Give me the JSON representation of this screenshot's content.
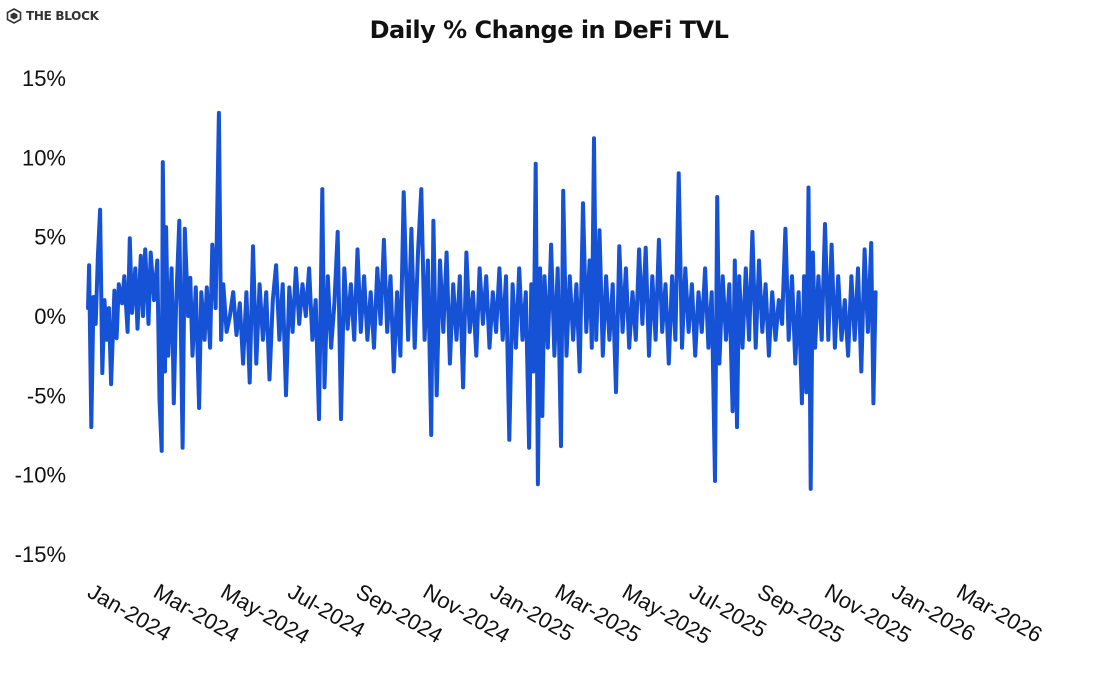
{
  "brand": {
    "name": "THE BLOCK",
    "icon": "the-block-logo-icon"
  },
  "chart_data": {
    "type": "line",
    "title": "Daily % Change in DeFi TVL",
    "xlabel": "",
    "ylabel": "",
    "ylim": [
      -15,
      15
    ],
    "yticks": [
      15,
      10,
      5,
      0,
      -5,
      -10,
      -15
    ],
    "ytick_labels": [
      "15%",
      "10%",
      "5%",
      "0%",
      "-5%",
      "-10%",
      "-15%"
    ],
    "x_range": [
      "2024-01-01",
      "2026-03-31"
    ],
    "xtick_labels": [
      "Jan-2024",
      "Mar-2024",
      "May-2024",
      "Jul-2024",
      "Sep-2024",
      "Nov-2024",
      "Jan-2025",
      "Mar-2025",
      "May-2025",
      "Jul-2025",
      "Sep-2025",
      "Nov-2025",
      "Jan-2026",
      "Mar-2026"
    ],
    "grid": false,
    "legend": "none",
    "series": [
      {
        "color": "#1652d6",
        "points": [
          [
            "2024-01-01",
            0.5
          ],
          [
            "2024-01-02",
            3.2
          ],
          [
            "2024-01-04",
            -7.0
          ],
          [
            "2024-01-06",
            1.2
          ],
          [
            "2024-01-08",
            -0.5
          ],
          [
            "2024-01-10",
            3.8
          ],
          [
            "2024-01-12",
            6.7
          ],
          [
            "2024-01-14",
            -3.6
          ],
          [
            "2024-01-16",
            1.0
          ],
          [
            "2024-01-18",
            -1.5
          ],
          [
            "2024-01-20",
            0.5
          ],
          [
            "2024-01-22",
            -4.3
          ],
          [
            "2024-01-25",
            1.6
          ],
          [
            "2024-01-27",
            -1.4
          ],
          [
            "2024-01-29",
            2.0
          ],
          [
            "2024-02-01",
            0.8
          ],
          [
            "2024-02-03",
            2.5
          ],
          [
            "2024-02-06",
            -1.0
          ],
          [
            "2024-02-08",
            4.9
          ],
          [
            "2024-02-10",
            0.2
          ],
          [
            "2024-02-13",
            3.0
          ],
          [
            "2024-02-15",
            -0.8
          ],
          [
            "2024-02-18",
            3.8
          ],
          [
            "2024-02-20",
            0.0
          ],
          [
            "2024-02-22",
            4.2
          ],
          [
            "2024-02-25",
            -0.5
          ],
          [
            "2024-02-27",
            4.0
          ],
          [
            "2024-03-01",
            1.0
          ],
          [
            "2024-03-04",
            3.5
          ],
          [
            "2024-03-06",
            -5.3
          ],
          [
            "2024-03-08",
            -8.5
          ],
          [
            "2024-03-09",
            9.7
          ],
          [
            "2024-03-11",
            -3.5
          ],
          [
            "2024-03-12",
            5.6
          ],
          [
            "2024-03-14",
            -2.5
          ],
          [
            "2024-03-17",
            3.0
          ],
          [
            "2024-03-19",
            -5.5
          ],
          [
            "2024-03-21",
            0.5
          ],
          [
            "2024-03-24",
            6.0
          ],
          [
            "2024-03-27",
            -8.3
          ],
          [
            "2024-03-29",
            5.5
          ],
          [
            "2024-04-01",
            0.0
          ],
          [
            "2024-04-03",
            2.4
          ],
          [
            "2024-04-05",
            -2.5
          ],
          [
            "2024-04-08",
            1.8
          ],
          [
            "2024-04-11",
            -5.8
          ],
          [
            "2024-04-13",
            1.5
          ],
          [
            "2024-04-16",
            -1.5
          ],
          [
            "2024-04-18",
            1.8
          ],
          [
            "2024-04-21",
            -2.0
          ],
          [
            "2024-04-23",
            4.5
          ],
          [
            "2024-04-26",
            0.5
          ],
          [
            "2024-04-29",
            12.8
          ],
          [
            "2024-05-01",
            -1.5
          ],
          [
            "2024-05-03",
            2.0
          ],
          [
            "2024-05-06",
            -1.0
          ],
          [
            "2024-05-09",
            0.0
          ],
          [
            "2024-05-12",
            1.5
          ],
          [
            "2024-05-15",
            -1.2
          ],
          [
            "2024-05-18",
            0.8
          ],
          [
            "2024-05-21",
            -3.0
          ],
          [
            "2024-05-24",
            1.5
          ],
          [
            "2024-05-27",
            -4.2
          ],
          [
            "2024-05-30",
            4.4
          ],
          [
            "2024-06-02",
            -3.0
          ],
          [
            "2024-06-05",
            2.0
          ],
          [
            "2024-06-08",
            -1.5
          ],
          [
            "2024-06-11",
            1.5
          ],
          [
            "2024-06-14",
            -4.0
          ],
          [
            "2024-06-17",
            1.0
          ],
          [
            "2024-06-20",
            3.2
          ],
          [
            "2024-06-23",
            -1.5
          ],
          [
            "2024-06-26",
            2.0
          ],
          [
            "2024-06-29",
            -5.0
          ],
          [
            "2024-07-02",
            1.8
          ],
          [
            "2024-07-05",
            -1.0
          ],
          [
            "2024-07-08",
            3.0
          ],
          [
            "2024-07-11",
            -0.5
          ],
          [
            "2024-07-14",
            2.0
          ],
          [
            "2024-07-17",
            0.0
          ],
          [
            "2024-07-20",
            3.0
          ],
          [
            "2024-07-23",
            -1.5
          ],
          [
            "2024-07-26",
            1.0
          ],
          [
            "2024-07-29",
            -6.5
          ],
          [
            "2024-08-01",
            8.0
          ],
          [
            "2024-08-03",
            -4.5
          ],
          [
            "2024-08-06",
            2.5
          ],
          [
            "2024-08-09",
            -2.0
          ],
          [
            "2024-08-12",
            0.8
          ],
          [
            "2024-08-15",
            5.3
          ],
          [
            "2024-08-18",
            -6.5
          ],
          [
            "2024-08-21",
            3.0
          ],
          [
            "2024-08-24",
            -0.8
          ],
          [
            "2024-08-27",
            2.0
          ],
          [
            "2024-08-30",
            -1.5
          ],
          [
            "2024-09-02",
            4.2
          ],
          [
            "2024-09-05",
            -1.0
          ],
          [
            "2024-09-08",
            2.5
          ],
          [
            "2024-09-11",
            -1.5
          ],
          [
            "2024-09-14",
            1.5
          ],
          [
            "2024-09-17",
            -2.0
          ],
          [
            "2024-09-20",
            3.0
          ],
          [
            "2024-09-23",
            -0.5
          ],
          [
            "2024-09-26",
            4.8
          ],
          [
            "2024-09-29",
            -1.0
          ],
          [
            "2024-10-02",
            2.5
          ],
          [
            "2024-10-05",
            -3.5
          ],
          [
            "2024-10-08",
            1.5
          ],
          [
            "2024-10-11",
            -2.5
          ],
          [
            "2024-10-14",
            7.8
          ],
          [
            "2024-10-16",
            3.0
          ],
          [
            "2024-10-18",
            -1.5
          ],
          [
            "2024-10-21",
            5.5
          ],
          [
            "2024-10-24",
            -2.0
          ],
          [
            "2024-10-27",
            4.0
          ],
          [
            "2024-10-30",
            8.0
          ],
          [
            "2024-11-02",
            -1.5
          ],
          [
            "2024-11-05",
            3.5
          ],
          [
            "2024-11-08",
            -7.5
          ],
          [
            "2024-11-10",
            6.0
          ],
          [
            "2024-11-13",
            -5.0
          ],
          [
            "2024-11-16",
            3.5
          ],
          [
            "2024-11-19",
            -1.0
          ],
          [
            "2024-11-22",
            4.0
          ],
          [
            "2024-11-25",
            -3.0
          ],
          [
            "2024-11-28",
            2.0
          ],
          [
            "2024-12-01",
            -1.5
          ],
          [
            "2024-12-04",
            2.5
          ],
          [
            "2024-12-07",
            -4.5
          ],
          [
            "2024-12-10",
            4.0
          ],
          [
            "2024-12-13",
            -1.0
          ],
          [
            "2024-12-16",
            1.5
          ],
          [
            "2024-12-19",
            -2.5
          ],
          [
            "2024-12-22",
            3.0
          ],
          [
            "2024-12-25",
            -0.5
          ],
          [
            "2024-12-28",
            2.5
          ],
          [
            "2024-12-31",
            -2.0
          ],
          [
            "2025-01-03",
            1.5
          ],
          [
            "2025-01-06",
            -1.0
          ],
          [
            "2025-01-09",
            3.0
          ],
          [
            "2025-01-12",
            -1.5
          ],
          [
            "2025-01-15",
            2.5
          ],
          [
            "2025-01-18",
            -7.8
          ],
          [
            "2025-01-21",
            2.0
          ],
          [
            "2025-01-24",
            -2.0
          ],
          [
            "2025-01-27",
            3.0
          ],
          [
            "2025-01-30",
            -1.5
          ],
          [
            "2025-02-02",
            1.5
          ],
          [
            "2025-02-05",
            -8.3
          ],
          [
            "2025-02-07",
            2.0
          ],
          [
            "2025-02-09",
            -3.5
          ],
          [
            "2025-02-11",
            9.6
          ],
          [
            "2025-02-13",
            -10.6
          ],
          [
            "2025-02-15",
            3.0
          ],
          [
            "2025-02-17",
            -6.3
          ],
          [
            "2025-02-19",
            2.5
          ],
          [
            "2025-02-22",
            -2.0
          ],
          [
            "2025-02-25",
            4.5
          ],
          [
            "2025-02-28",
            -2.5
          ],
          [
            "2025-03-03",
            3.0
          ],
          [
            "2025-03-06",
            -8.2
          ],
          [
            "2025-03-08",
            7.9
          ],
          [
            "2025-03-11",
            -2.5
          ],
          [
            "2025-03-14",
            2.5
          ],
          [
            "2025-03-17",
            -1.5
          ],
          [
            "2025-03-20",
            2.0
          ],
          [
            "2025-03-23",
            -3.5
          ],
          [
            "2025-03-26",
            7.1
          ],
          [
            "2025-03-29",
            -1.0
          ],
          [
            "2025-04-01",
            3.5
          ],
          [
            "2025-04-03",
            -2.0
          ],
          [
            "2025-04-05",
            11.2
          ],
          [
            "2025-04-07",
            -1.5
          ],
          [
            "2025-04-10",
            5.4
          ],
          [
            "2025-04-13",
            -2.5
          ],
          [
            "2025-04-16",
            2.5
          ],
          [
            "2025-04-19",
            -1.5
          ],
          [
            "2025-04-22",
            2.0
          ],
          [
            "2025-04-25",
            -4.8
          ],
          [
            "2025-04-28",
            4.4
          ],
          [
            "2025-05-01",
            -1.0
          ],
          [
            "2025-05-04",
            3.0
          ],
          [
            "2025-05-07",
            -2.0
          ],
          [
            "2025-05-10",
            1.5
          ],
          [
            "2025-05-13",
            -1.5
          ],
          [
            "2025-05-16",
            4.2
          ],
          [
            "2025-05-19",
            -0.5
          ],
          [
            "2025-05-22",
            4.3
          ],
          [
            "2025-05-25",
            -2.5
          ],
          [
            "2025-05-28",
            2.5
          ],
          [
            "2025-05-31",
            -1.5
          ],
          [
            "2025-06-03",
            4.8
          ],
          [
            "2025-06-06",
            -1.0
          ],
          [
            "2025-06-09",
            2.0
          ],
          [
            "2025-06-12",
            -3.0
          ],
          [
            "2025-06-15",
            2.5
          ],
          [
            "2025-06-18",
            -1.5
          ],
          [
            "2025-06-21",
            9.0
          ],
          [
            "2025-06-24",
            -2.0
          ],
          [
            "2025-06-27",
            3.0
          ],
          [
            "2025-06-30",
            -1.0
          ],
          [
            "2025-07-03",
            2.0
          ],
          [
            "2025-07-06",
            -2.5
          ],
          [
            "2025-07-09",
            1.5
          ],
          [
            "2025-07-12",
            -1.0
          ],
          [
            "2025-07-15",
            3.0
          ],
          [
            "2025-07-18",
            -2.0
          ],
          [
            "2025-07-21",
            1.5
          ],
          [
            "2025-07-24",
            -10.4
          ],
          [
            "2025-07-26",
            7.5
          ],
          [
            "2025-07-28",
            -3.0
          ],
          [
            "2025-07-31",
            2.5
          ],
          [
            "2025-08-03",
            -1.5
          ],
          [
            "2025-08-06",
            2.0
          ],
          [
            "2025-08-09",
            -6.0
          ],
          [
            "2025-08-11",
            3.5
          ],
          [
            "2025-08-13",
            -7.0
          ],
          [
            "2025-08-15",
            2.5
          ],
          [
            "2025-08-18",
            -2.0
          ],
          [
            "2025-08-21",
            3.0
          ],
          [
            "2025-08-24",
            -1.5
          ],
          [
            "2025-08-27",
            5.3
          ],
          [
            "2025-08-30",
            -2.0
          ],
          [
            "2025-09-02",
            3.5
          ],
          [
            "2025-09-05",
            -1.0
          ],
          [
            "2025-09-08",
            2.0
          ],
          [
            "2025-09-11",
            -2.5
          ],
          [
            "2025-09-14",
            1.5
          ],
          [
            "2025-09-17",
            -1.5
          ],
          [
            "2025-09-20",
            1.0
          ],
          [
            "2025-09-23",
            -0.5
          ],
          [
            "2025-09-26",
            5.5
          ],
          [
            "2025-09-29",
            -1.5
          ],
          [
            "2025-10-02",
            2.5
          ],
          [
            "2025-10-05",
            -3.0
          ],
          [
            "2025-10-08",
            1.5
          ],
          [
            "2025-10-11",
            -5.5
          ],
          [
            "2025-10-13",
            2.5
          ],
          [
            "2025-10-15",
            -4.8
          ],
          [
            "2025-10-17",
            8.1
          ],
          [
            "2025-10-19",
            -10.9
          ],
          [
            "2025-10-21",
            4.0
          ],
          [
            "2025-10-23",
            -2.0
          ],
          [
            "2025-10-26",
            2.5
          ],
          [
            "2025-10-29",
            -1.5
          ],
          [
            "2025-11-01",
            5.8
          ],
          [
            "2025-11-04",
            -1.5
          ],
          [
            "2025-11-07",
            4.5
          ],
          [
            "2025-11-10",
            -2.0
          ],
          [
            "2025-11-13",
            2.5
          ],
          [
            "2025-11-16",
            -1.5
          ],
          [
            "2025-11-19",
            1.0
          ],
          [
            "2025-11-22",
            -2.5
          ],
          [
            "2025-11-25",
            2.5
          ],
          [
            "2025-11-28",
            -1.5
          ],
          [
            "2025-12-01",
            3.0
          ],
          [
            "2025-12-04",
            -3.5
          ],
          [
            "2025-12-07",
            4.2
          ],
          [
            "2025-12-10",
            -1.0
          ],
          [
            "2025-12-13",
            4.6
          ],
          [
            "2025-12-15",
            -5.5
          ],
          [
            "2025-12-17",
            1.5
          ]
        ]
      }
    ]
  }
}
